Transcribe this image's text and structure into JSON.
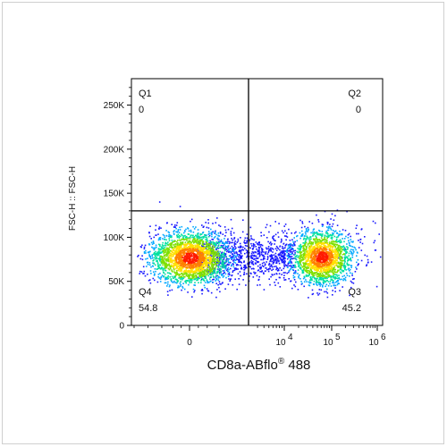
{
  "chart_data": {
    "type": "scatter",
    "plot_style": "flow-cytometry-density-dot-plot",
    "xlabel": "CD8a-ABflo® 488",
    "ylabel": "FSC-H :: FSC-H",
    "x_scale": "biexponential",
    "y_scale": "linear",
    "xlim": [
      -2000,
      1000000
    ],
    "ylim": [
      0,
      280000
    ],
    "y_ticks": [
      {
        "value": 0,
        "label": "0"
      },
      {
        "value": 50000,
        "label": "50K"
      },
      {
        "value": 100000,
        "label": "100K"
      },
      {
        "value": 150000,
        "label": "150K"
      },
      {
        "value": 200000,
        "label": "200K"
      },
      {
        "value": 250000,
        "label": "250K"
      }
    ],
    "x_ticks": [
      {
        "value": 0,
        "label": "0"
      },
      {
        "value": 10000,
        "label": "10",
        "exp": "4"
      },
      {
        "value": 100000,
        "label": "10",
        "exp": "5"
      },
      {
        "value": 1000000,
        "label": "10",
        "exp": "6"
      }
    ],
    "gate": {
      "x": 2000,
      "y": 130000
    },
    "quadrants": [
      {
        "name": "Q1",
        "value": "0",
        "position": "top-left"
      },
      {
        "name": "Q2",
        "value": "0",
        "position": "top-right"
      },
      {
        "name": "Q3",
        "value": "45.2",
        "position": "bottom-right"
      },
      {
        "name": "Q4",
        "value": "54.8",
        "position": "bottom-left"
      }
    ],
    "populations": [
      {
        "quadrant": "Q4",
        "center_x": 0,
        "center_y": 77000,
        "percent": 54.8
      },
      {
        "quadrant": "Q3",
        "center_x": 60000,
        "center_y": 78000,
        "percent": 45.2
      }
    ],
    "density_colors": [
      "#1a1aff",
      "#00a8ff",
      "#00e0a0",
      "#7ee000",
      "#ffe000",
      "#ff8000",
      "#ff1a00"
    ],
    "grid": false
  }
}
